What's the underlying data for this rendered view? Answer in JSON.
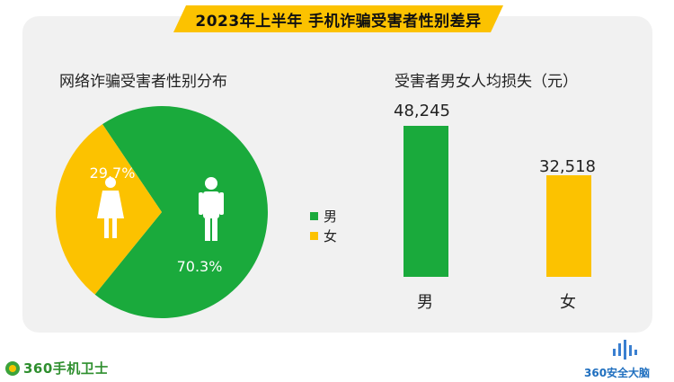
{
  "header": {
    "title": "2023年上半年 手机诈骗受害者性别差异"
  },
  "pie_section": {
    "title": "网络诈骗受害者性别分布"
  },
  "bar_section": {
    "title": "受害者男女人均损失（元）"
  },
  "legend": [
    {
      "label": "男",
      "color": "#1aaa3c"
    },
    {
      "label": "女",
      "color": "#fcc200"
    }
  ],
  "icons": {
    "male": "male-person-icon",
    "female": "female-person-icon"
  },
  "colors": {
    "male": "#1aaa3c",
    "female": "#fcc200",
    "panel": "#f1f1f1",
    "banner": "#fcc200"
  },
  "chart_data": [
    {
      "type": "pie",
      "title": "网络诈骗受害者性别分布",
      "categories": [
        "男",
        "女"
      ],
      "values": [
        70.3,
        29.7
      ],
      "labels": [
        "70.3%",
        "29.7%"
      ],
      "legend_position": "right"
    },
    {
      "type": "bar",
      "title": "受害者男女人均损失（元）",
      "categories": [
        "男",
        "女"
      ],
      "values": [
        48245,
        32518
      ],
      "labels": [
        "48,245",
        "32,518"
      ]
    }
  ],
  "footer": {
    "left_brand": "360手机卫士",
    "right_brand": "360安全大脑"
  }
}
